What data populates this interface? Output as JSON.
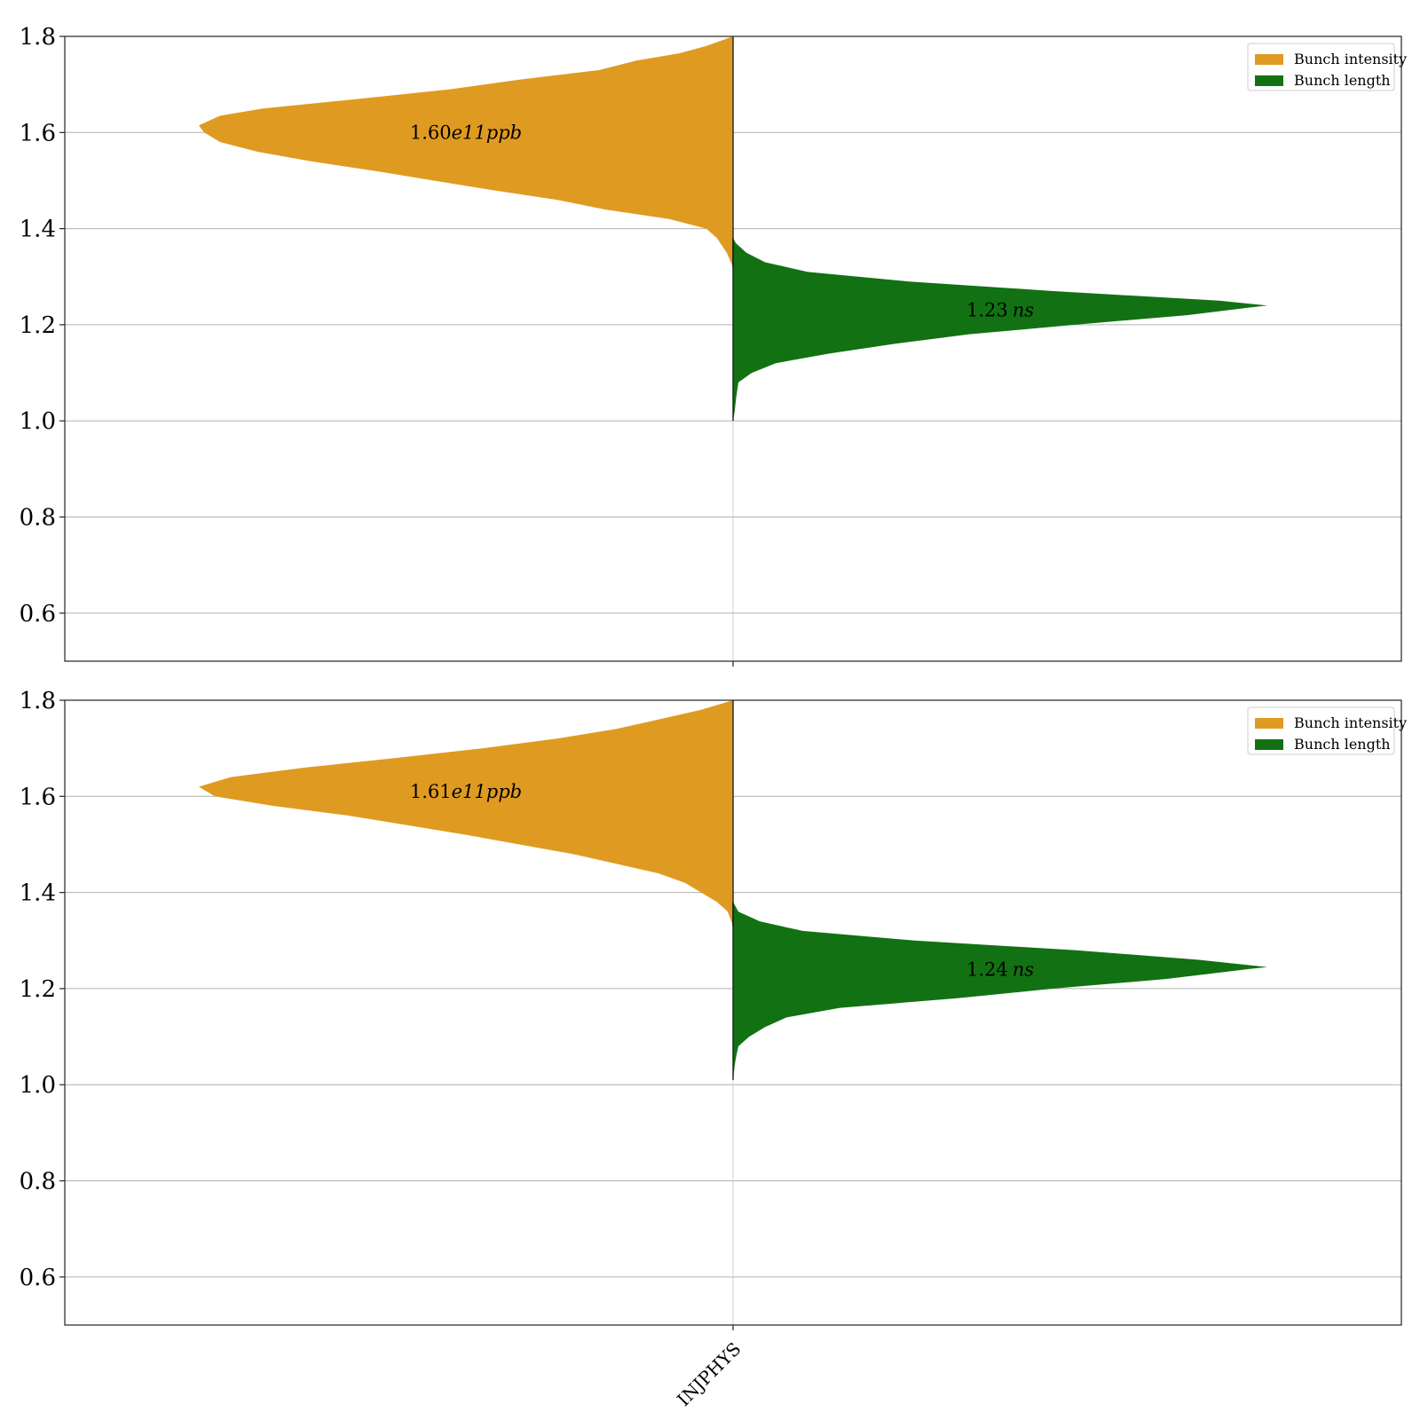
{
  "chart_data": [
    {
      "type": "violin",
      "ylim": [
        0.5,
        1.8
      ],
      "yticks": [
        "0.6",
        "0.8",
        "1.0",
        "1.2",
        "1.4",
        "1.6",
        "1.8"
      ],
      "grid": "horizontal",
      "legend_position": "top-right",
      "legend": [
        {
          "name": "Bunch intensity",
          "color": "#df9b21"
        },
        {
          "name": "Bunch length",
          "color": "#127213"
        }
      ],
      "annotations": [
        {
          "series": "Bunch intensity",
          "value": "1.60",
          "exp": "e11",
          "unit": "ppb",
          "y": 1.6
        },
        {
          "series": "Bunch length",
          "value": "1.23",
          "exp": "",
          "unit": "ns",
          "y": 1.23
        }
      ],
      "series": [
        {
          "name": "Bunch intensity",
          "side": "left",
          "color": "#df9b21",
          "density": [
            [
              1.32,
              0.0
            ],
            [
              1.35,
              0.012
            ],
            [
              1.38,
              0.03
            ],
            [
              1.4,
              0.05
            ],
            [
              1.42,
              0.12
            ],
            [
              1.44,
              0.24
            ],
            [
              1.46,
              0.33
            ],
            [
              1.48,
              0.45
            ],
            [
              1.5,
              0.56
            ],
            [
              1.52,
              0.67
            ],
            [
              1.54,
              0.79
            ],
            [
              1.56,
              0.89
            ],
            [
              1.58,
              0.96
            ],
            [
              1.6,
              0.99
            ],
            [
              1.615,
              1.0
            ],
            [
              1.635,
              0.96
            ],
            [
              1.65,
              0.88
            ],
            [
              1.67,
              0.7
            ],
            [
              1.69,
              0.53
            ],
            [
              1.71,
              0.4
            ],
            [
              1.73,
              0.25
            ],
            [
              1.75,
              0.18
            ],
            [
              1.765,
              0.1
            ],
            [
              1.78,
              0.05
            ],
            [
              1.8,
              0.0
            ]
          ]
        },
        {
          "name": "Bunch length",
          "side": "right",
          "color": "#127213",
          "density": [
            [
              1.0,
              0.0
            ],
            [
              1.02,
              0.003
            ],
            [
              1.05,
              0.006
            ],
            [
              1.08,
              0.01
            ],
            [
              1.1,
              0.035
            ],
            [
              1.12,
              0.08
            ],
            [
              1.14,
              0.18
            ],
            [
              1.16,
              0.3
            ],
            [
              1.18,
              0.44
            ],
            [
              1.2,
              0.64
            ],
            [
              1.22,
              0.85
            ],
            [
              1.235,
              0.96
            ],
            [
              1.24,
              1.0
            ],
            [
              1.25,
              0.91
            ],
            [
              1.27,
              0.6
            ],
            [
              1.29,
              0.33
            ],
            [
              1.31,
              0.14
            ],
            [
              1.33,
              0.06
            ],
            [
              1.35,
              0.025
            ],
            [
              1.37,
              0.005
            ],
            [
              1.38,
              0.0
            ]
          ]
        }
      ]
    },
    {
      "type": "violin",
      "ylim": [
        0.5,
        1.8
      ],
      "yticks": [
        "0.6",
        "0.8",
        "1.0",
        "1.2",
        "1.4",
        "1.6",
        "1.8"
      ],
      "grid": "horizontal",
      "legend_position": "top-right",
      "xtick_labels": [
        "INJPHYS"
      ],
      "legend": [
        {
          "name": "Bunch intensity",
          "color": "#df9b21"
        },
        {
          "name": "Bunch length",
          "color": "#127213"
        }
      ],
      "annotations": [
        {
          "series": "Bunch intensity",
          "value": "1.61",
          "exp": "e11",
          "unit": "ppb",
          "y": 1.61
        },
        {
          "series": "Bunch length",
          "value": "1.24",
          "exp": "",
          "unit": "ns",
          "y": 1.24
        }
      ],
      "series": [
        {
          "name": "Bunch intensity",
          "side": "left",
          "color": "#df9b21",
          "density": [
            [
              1.33,
              0.0
            ],
            [
              1.36,
              0.01
            ],
            [
              1.38,
              0.03
            ],
            [
              1.4,
              0.06
            ],
            [
              1.42,
              0.09
            ],
            [
              1.44,
              0.14
            ],
            [
              1.46,
              0.22
            ],
            [
              1.48,
              0.3
            ],
            [
              1.5,
              0.4
            ],
            [
              1.52,
              0.5
            ],
            [
              1.54,
              0.61
            ],
            [
              1.56,
              0.72
            ],
            [
              1.58,
              0.86
            ],
            [
              1.6,
              0.97
            ],
            [
              1.62,
              1.0
            ],
            [
              1.64,
              0.94
            ],
            [
              1.66,
              0.8
            ],
            [
              1.68,
              0.63
            ],
            [
              1.7,
              0.47
            ],
            [
              1.72,
              0.33
            ],
            [
              1.74,
              0.22
            ],
            [
              1.76,
              0.14
            ],
            [
              1.78,
              0.06
            ],
            [
              1.8,
              0.0
            ]
          ]
        },
        {
          "name": "Bunch length",
          "side": "right",
          "color": "#127213",
          "density": [
            [
              1.01,
              0.0
            ],
            [
              1.04,
              0.003
            ],
            [
              1.06,
              0.006
            ],
            [
              1.08,
              0.01
            ],
            [
              1.1,
              0.03
            ],
            [
              1.12,
              0.06
            ],
            [
              1.14,
              0.1
            ],
            [
              1.16,
              0.2
            ],
            [
              1.18,
              0.42
            ],
            [
              1.2,
              0.6
            ],
            [
              1.22,
              0.81
            ],
            [
              1.24,
              0.96
            ],
            [
              1.245,
              1.0
            ],
            [
              1.26,
              0.87
            ],
            [
              1.28,
              0.64
            ],
            [
              1.3,
              0.34
            ],
            [
              1.32,
              0.13
            ],
            [
              1.34,
              0.05
            ],
            [
              1.36,
              0.01
            ],
            [
              1.38,
              0.0
            ]
          ]
        }
      ]
    }
  ]
}
